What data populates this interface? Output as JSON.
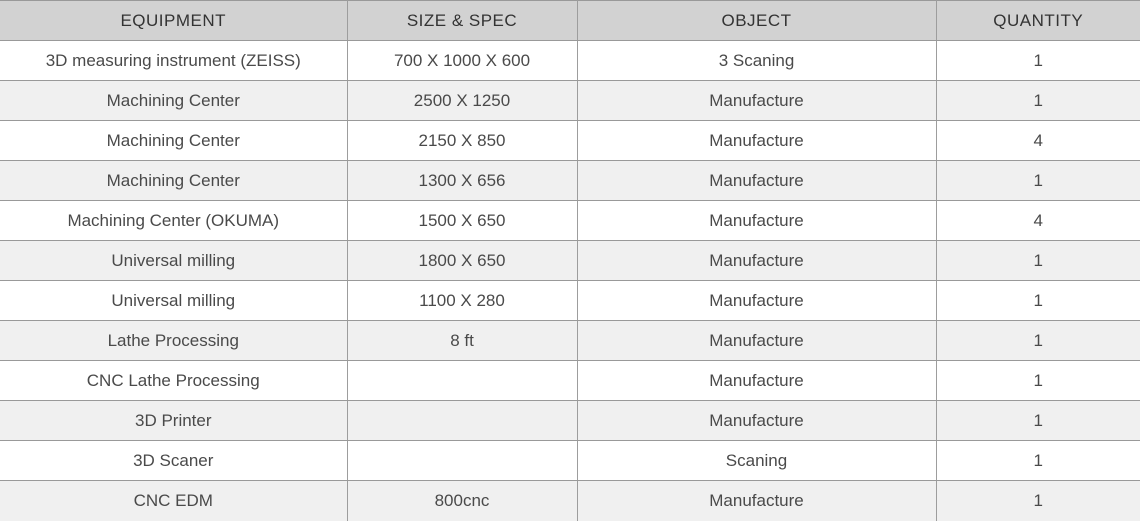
{
  "colors": {
    "header_bg": "#d2d2d2",
    "row_bg": "#ffffff",
    "row_alt_bg": "#f0f0f0",
    "border": "#999999",
    "header_text": "#333333",
    "body_text": "#4a4a4a"
  },
  "table": {
    "columns": [
      {
        "key": "equipment",
        "label": "EQUIPMENT"
      },
      {
        "key": "size_spec",
        "label": "SIZE & SPEC"
      },
      {
        "key": "object",
        "label": "OBJECT"
      },
      {
        "key": "quantity",
        "label": "QUANTITY"
      }
    ],
    "rows": [
      {
        "equipment": "3D measuring instrument (ZEISS)",
        "size_spec": "700 X 1000 X 600",
        "object": "3 Scaning",
        "quantity": "1"
      },
      {
        "equipment": "Machining Center",
        "size_spec": "2500 X 1250",
        "object": "Manufacture",
        "quantity": "1"
      },
      {
        "equipment": "Machining Center",
        "size_spec": "2150 X 850",
        "object": "Manufacture",
        "quantity": "4"
      },
      {
        "equipment": "Machining Center",
        "size_spec": "1300 X 656",
        "object": "Manufacture",
        "quantity": "1"
      },
      {
        "equipment": "Machining Center (OKUMA)",
        "size_spec": "1500 X 650",
        "object": "Manufacture",
        "quantity": "4"
      },
      {
        "equipment": "Universal milling",
        "size_spec": "1800 X 650",
        "object": "Manufacture",
        "quantity": "1"
      },
      {
        "equipment": "Universal milling",
        "size_spec": "1100 X 280",
        "object": "Manufacture",
        "quantity": "1"
      },
      {
        "equipment": "Lathe Processing",
        "size_spec": "8 ft",
        "object": "Manufacture",
        "quantity": "1"
      },
      {
        "equipment": "CNC Lathe Processing",
        "size_spec": "",
        "object": "Manufacture",
        "quantity": "1"
      },
      {
        "equipment": "3D Printer",
        "size_spec": "",
        "object": "Manufacture",
        "quantity": "1"
      },
      {
        "equipment": "3D Scaner",
        "size_spec": "",
        "object": "Scaning",
        "quantity": "1"
      },
      {
        "equipment": "CNC EDM",
        "size_spec": "800cnc",
        "object": "Manufacture",
        "quantity": "1"
      }
    ]
  }
}
